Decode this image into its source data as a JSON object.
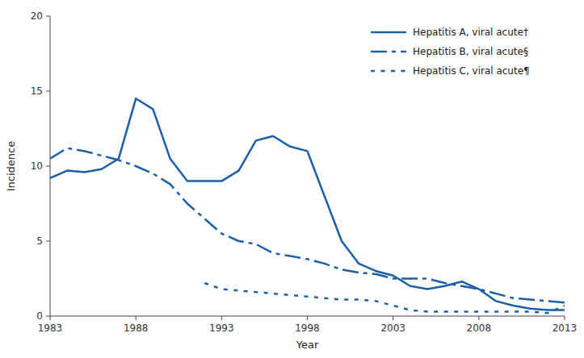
{
  "chart_data": {
    "type": "line",
    "xlabel": "Year",
    "ylabel": "Incidence",
    "xlim": [
      1983,
      2013
    ],
    "ylim": [
      0,
      20
    ],
    "xticks": [
      1983,
      1988,
      1993,
      1998,
      2003,
      2008,
      2013
    ],
    "yticks": [
      0,
      5,
      10,
      15,
      20
    ],
    "grid": false,
    "legend": "upper right",
    "series": [
      {
        "name": "Hepatitis A, viral acute†",
        "color": "#1a5fa8",
        "line_style": "solid",
        "x": [
          1983,
          1984,
          1985,
          1986,
          1987,
          1988,
          1989,
          1990,
          1991,
          1992,
          1993,
          1994,
          1995,
          1996,
          1997,
          1998,
          1999,
          2000,
          2001,
          2002,
          2003,
          2004,
          2005,
          2006,
          2007,
          2008,
          2009,
          2010,
          2011,
          2012,
          2013
        ],
        "values": [
          9.2,
          9.7,
          9.6,
          9.8,
          10.5,
          14.5,
          13.8,
          10.5,
          9.0,
          9.0,
          9.0,
          9.7,
          11.7,
          12.0,
          11.3,
          11.0,
          8.0,
          5.0,
          3.5,
          3.0,
          2.7,
          2.0,
          1.8,
          2.0,
          2.3,
          1.8,
          1.0,
          0.7,
          0.5,
          0.4,
          0.4
        ]
      },
      {
        "name": "Hepatitis B, viral acute§",
        "color": "#1a5fa8",
        "line_style": "dashdot",
        "x": [
          1983,
          1984,
          1985,
          1986,
          1987,
          1988,
          1989,
          1990,
          1991,
          1992,
          1993,
          1994,
          1995,
          1996,
          1997,
          1998,
          1999,
          2000,
          2001,
          2002,
          2003,
          2004,
          2005,
          2006,
          2007,
          2008,
          2009,
          2010,
          2011,
          2012,
          2013
        ],
        "values": [
          10.5,
          11.2,
          11.0,
          10.7,
          10.4,
          10.0,
          9.5,
          8.8,
          7.5,
          6.5,
          5.5,
          5.0,
          4.8,
          4.2,
          4.0,
          3.8,
          3.5,
          3.1,
          2.9,
          2.8,
          2.5,
          2.5,
          2.5,
          2.2,
          2.0,
          1.8,
          1.5,
          1.2,
          1.1,
          1.0,
          0.9
        ]
      },
      {
        "name": "Hepatitis C, viral acute¶",
        "color": "#1a5fa8",
        "line_style": "dotted",
        "x": [
          1992,
          1993,
          1994,
          1995,
          1996,
          1997,
          1998,
          1999,
          2000,
          2001,
          2002,
          2003,
          2004,
          2005,
          2006,
          2007,
          2008,
          2009,
          2010,
          2011,
          2012,
          2013
        ],
        "values": [
          2.2,
          1.8,
          1.7,
          1.6,
          1.5,
          1.4,
          1.3,
          1.2,
          1.1,
          1.1,
          1.0,
          0.7,
          0.4,
          0.3,
          0.3,
          0.3,
          0.3,
          0.3,
          0.3,
          0.3,
          0.2,
          0.7
        ]
      }
    ]
  }
}
